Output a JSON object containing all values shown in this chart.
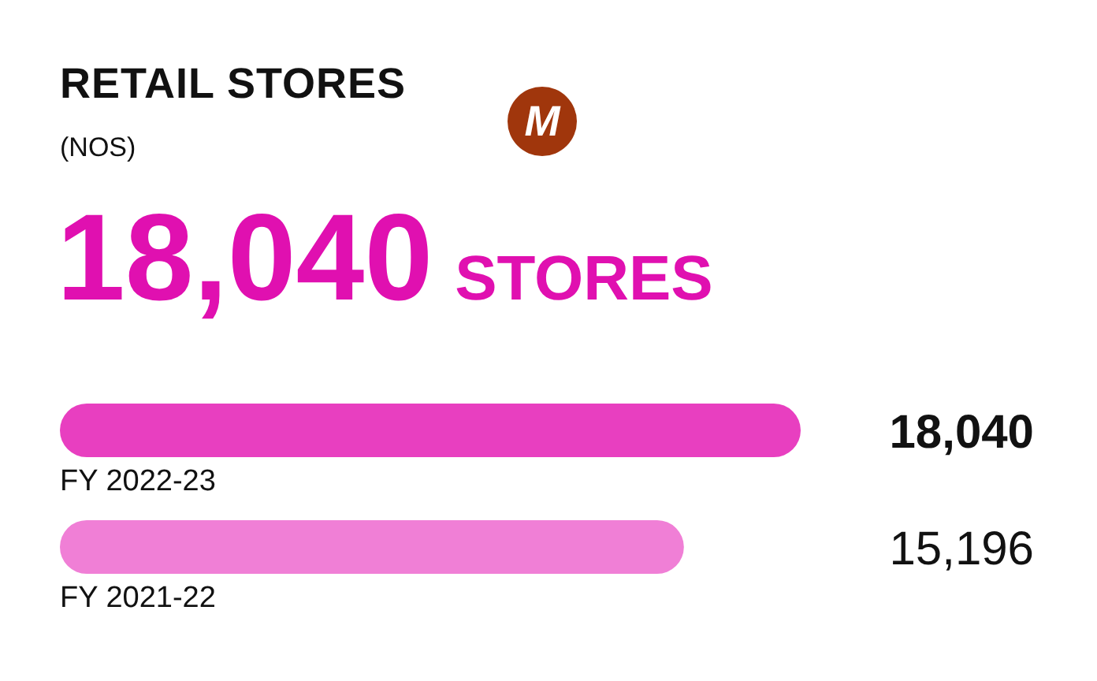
{
  "chart_data": {
    "type": "bar",
    "orientation": "horizontal",
    "title": "RETAIL STORES",
    "subtitle": "(NOS)",
    "annotations": [
      "M",
      "18,040",
      "STORES"
    ],
    "categories": [
      "FY 2022-23",
      "FY 2021-22"
    ],
    "values": [
      18040,
      15196
    ],
    "colors": [
      "#e83fc0",
      "#f07fd6"
    ],
    "value_labels": [
      "18,040",
      "15,196"
    ],
    "tick_labels": false
  }
}
